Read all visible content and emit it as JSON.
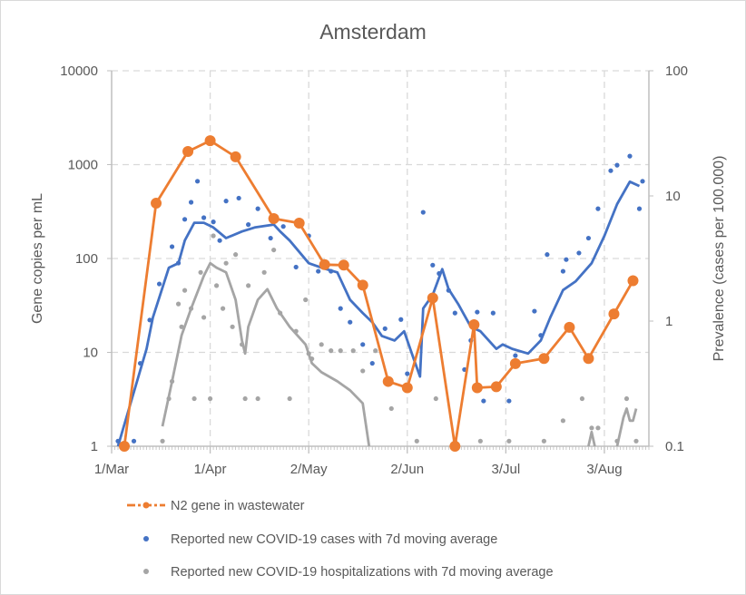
{
  "chart_data": {
    "type": "line",
    "title": "Amsterdam",
    "ylabel": "Gene copies per mL",
    "y2label": "Prevalence (cases per 100.000)",
    "yscale": "log",
    "ylim": [
      1,
      10000
    ],
    "yticks": [
      "1",
      "10",
      "100",
      "1000",
      "10000"
    ],
    "y2scale": "log",
    "y2lim": [
      0.1,
      100
    ],
    "y2ticks": [
      "0.1",
      "1",
      "10",
      "100"
    ],
    "xticks": [
      "1/Mar",
      "1/Apr",
      "2/May",
      "2/Jun",
      "3/Jul",
      "3/Aug"
    ],
    "grid": true,
    "legend_position": "bottom",
    "colors": {
      "wastewater": "#ED7D31",
      "cases": "#4472C4",
      "hospitalizations": "#A5A5A5",
      "grid": "#d9d9d9",
      "axis": "#bfbfbf"
    },
    "series": [
      {
        "name": "N2 gene in wastewater",
        "axis": "left",
        "style": "line-marker",
        "points": [
          [
            "5/Mar",
            1
          ],
          [
            "15/Mar",
            388
          ],
          [
            "25/Mar",
            1380
          ],
          [
            "1/Apr",
            1800
          ],
          [
            "9/Apr",
            1210
          ],
          [
            "21/Apr",
            266
          ],
          [
            "29/Apr",
            238
          ],
          [
            "7/May",
            86
          ],
          [
            "13/May",
            85
          ],
          [
            "19/May",
            52
          ],
          [
            "27/May",
            4.9
          ],
          [
            "2/Jun",
            4.2
          ],
          [
            "10/Jun",
            38
          ],
          [
            "17/Jun",
            1
          ],
          [
            "23/Jun",
            19.7
          ],
          [
            "24/Jun",
            4.2
          ],
          [
            "30/Jun",
            4.3
          ],
          [
            "6/Jul",
            7.6
          ],
          [
            "15/Jul",
            8.6
          ],
          [
            "23/Jul",
            18.5
          ],
          [
            "29/Jul",
            8.6
          ],
          [
            "6/Aug",
            25.7
          ],
          [
            "12/Aug",
            58
          ]
        ]
      },
      {
        "name": "Reported new COVID-19 cases with 7d moving average",
        "axis": "right",
        "style": "dots-and-average",
        "points": [
          [
            "3/Mar",
            0.11
          ],
          [
            "8/Mar",
            0.11
          ],
          [
            "10/Mar",
            0.46
          ],
          [
            "13/Mar",
            1.02
          ],
          [
            "16/Mar",
            1.98
          ],
          [
            "20/Mar",
            3.93
          ],
          [
            "22/Mar",
            2.91
          ],
          [
            "24/Mar",
            6.5
          ],
          [
            "26/Mar",
            8.9
          ],
          [
            "28/Mar",
            13.1
          ],
          [
            "30/Mar",
            6.7
          ],
          [
            "2/Apr",
            6.2
          ],
          [
            "4/Apr",
            4.4
          ],
          [
            "6/Apr",
            9.1
          ],
          [
            "10/Apr",
            9.6
          ],
          [
            "13/Apr",
            5.9
          ],
          [
            "16/Apr",
            7.9
          ],
          [
            "20/Apr",
            4.6
          ],
          [
            "24/Apr",
            5.7
          ],
          [
            "28/Apr",
            2.7
          ],
          [
            "2/May",
            4.8
          ],
          [
            "5/May",
            2.5
          ],
          [
            "9/May",
            2.5
          ],
          [
            "12/May",
            1.26
          ],
          [
            "15/May",
            0.98
          ],
          [
            "19/May",
            0.65
          ],
          [
            "22/May",
            0.46
          ],
          [
            "26/May",
            0.87
          ],
          [
            "31/May",
            1.03
          ],
          [
            "2/Jun",
            0.38
          ],
          [
            "7/Jun",
            7.4
          ],
          [
            "10/Jun",
            2.8
          ],
          [
            "12/Jun",
            2.4
          ],
          [
            "15/Jun",
            1.76
          ],
          [
            "17/Jun",
            1.16
          ],
          [
            "20/Jun",
            0.41
          ],
          [
            "22/Jun",
            0.7
          ],
          [
            "24/Jun",
            1.18
          ],
          [
            "26/Jun",
            0.23
          ],
          [
            "29/Jun",
            1.16
          ],
          [
            "4/Jul",
            0.23
          ],
          [
            "6/Jul",
            0.53
          ],
          [
            "12/Jul",
            1.2
          ],
          [
            "14/Jul",
            0.77
          ],
          [
            "16/Jul",
            3.4
          ],
          [
            "21/Jul",
            2.5
          ],
          [
            "22/Jul",
            3.1
          ],
          [
            "26/Jul",
            3.5
          ],
          [
            "29/Jul",
            4.6
          ],
          [
            "1/Aug",
            7.9
          ],
          [
            "5/Aug",
            15.9
          ],
          [
            "7/Aug",
            17.6
          ],
          [
            "11/Aug",
            20.8
          ],
          [
            "14/Aug",
            7.9
          ],
          [
            "15/Aug",
            13.1
          ]
        ],
        "moving_average": [
          [
            "3/Mar",
            0.1
          ],
          [
            "9/Mar",
            0.33
          ],
          [
            "12/Mar",
            0.6
          ],
          [
            "14/Mar",
            1.07
          ],
          [
            "19/Mar",
            2.67
          ],
          [
            "22/Mar",
            2.9
          ],
          [
            "24/Mar",
            4.4
          ],
          [
            "27/Mar",
            6.1
          ],
          [
            "30/Mar",
            6.1
          ],
          [
            "2/Apr",
            5.6
          ],
          [
            "6/Apr",
            4.6
          ],
          [
            "11/Apr",
            5.2
          ],
          [
            "15/Apr",
            5.6
          ],
          [
            "21/Apr",
            5.9
          ],
          [
            "23/Apr",
            5.2
          ],
          [
            "26/Apr",
            4.4
          ],
          [
            "2/May",
            2.9
          ],
          [
            "6/May",
            2.67
          ],
          [
            "11/May",
            2.45
          ],
          [
            "15/May",
            1.48
          ],
          [
            "19/May",
            1.16
          ],
          [
            "22/May",
            0.98
          ],
          [
            "25/May",
            0.76
          ],
          [
            "29/May",
            0.7
          ],
          [
            "1/Jun",
            0.83
          ],
          [
            "4/Jun",
            0.5
          ],
          [
            "6/Jun",
            0.36
          ],
          [
            "7/Jun",
            1.26
          ],
          [
            "10/Jun",
            1.62
          ],
          [
            "13/Jun",
            2.6
          ],
          [
            "15/Jun",
            1.8
          ],
          [
            "18/Jun",
            1.37
          ],
          [
            "22/Jun",
            0.9
          ],
          [
            "25/Jun",
            0.83
          ],
          [
            "30/Jun",
            0.6
          ],
          [
            "2/Jul",
            0.65
          ],
          [
            "5/Jul",
            0.6
          ],
          [
            "10/Jul",
            0.55
          ],
          [
            "14/Jul",
            0.7
          ],
          [
            "17/Jul",
            1.07
          ],
          [
            "21/Jul",
            1.77
          ],
          [
            "25/Jul",
            2.08
          ],
          [
            "30/Jul",
            2.9
          ],
          [
            "3/Aug",
            4.8
          ],
          [
            "7/Aug",
            8.6
          ],
          [
            "11/Aug",
            13
          ],
          [
            "14/Aug",
            12
          ]
        ]
      },
      {
        "name": "Reported new COVID-19 hospitalizations with 7d moving average",
        "axis": "right",
        "style": "dots-and-average",
        "points": [
          [
            "17/Mar",
            0.11
          ],
          [
            "19/Mar",
            0.24
          ],
          [
            "20/Mar",
            0.33
          ],
          [
            "22/Mar",
            1.37
          ],
          [
            "23/Mar",
            0.9
          ],
          [
            "24/Mar",
            1.76
          ],
          [
            "26/Mar",
            1.26
          ],
          [
            "27/Mar",
            0.24
          ],
          [
            "29/Mar",
            2.45
          ],
          [
            "30/Mar",
            1.07
          ],
          [
            "1/Apr",
            0.24
          ],
          [
            "2/Apr",
            4.8
          ],
          [
            "3/Apr",
            1.92
          ],
          [
            "5/Apr",
            1.26
          ],
          [
            "6/Apr",
            2.9
          ],
          [
            "8/Apr",
            0.9
          ],
          [
            "9/Apr",
            3.4
          ],
          [
            "11/Apr",
            0.65
          ],
          [
            "12/Apr",
            0.24
          ],
          [
            "13/Apr",
            1.92
          ],
          [
            "16/Apr",
            0.24
          ],
          [
            "18/Apr",
            2.45
          ],
          [
            "21/Apr",
            3.7
          ],
          [
            "23/Apr",
            1.16
          ],
          [
            "26/Apr",
            0.24
          ],
          [
            "28/Apr",
            0.83
          ],
          [
            "1/May",
            1.48
          ],
          [
            "2/May",
            0.55
          ],
          [
            "3/May",
            0.5
          ],
          [
            "6/May",
            0.65
          ],
          [
            "9/May",
            0.58
          ],
          [
            "12/May",
            0.58
          ],
          [
            "16/May",
            0.58
          ],
          [
            "19/May",
            0.4
          ],
          [
            "23/May",
            0.58
          ],
          [
            "28/May",
            0.2
          ],
          [
            "5/Jun",
            0.11
          ],
          [
            "11/Jun",
            0.24
          ],
          [
            "17/Jun",
            0.11
          ],
          [
            "25/Jun",
            0.11
          ],
          [
            "4/Jul",
            0.11
          ],
          [
            "15/Jul",
            0.11
          ],
          [
            "21/Jul",
            0.16
          ],
          [
            "27/Jul",
            0.24
          ],
          [
            "30/Jul",
            0.14
          ],
          [
            "1/Aug",
            0.14
          ],
          [
            "7/Aug",
            0.11
          ],
          [
            "10/Aug",
            0.24
          ],
          [
            "13/Aug",
            0.11
          ]
        ],
        "moving_average": [
          [
            "17/Mar",
            0.144
          ],
          [
            "20/Mar",
            0.33
          ],
          [
            "23/Mar",
            0.77
          ],
          [
            "26/Mar",
            1.26
          ],
          [
            "30/Mar",
            2.3
          ],
          [
            "1/Apr",
            2.9
          ],
          [
            "3/Apr",
            2.67
          ],
          [
            "6/Apr",
            2.45
          ],
          [
            "9/Apr",
            1.48
          ],
          [
            "11/Apr",
            0.7
          ],
          [
            "12/Apr",
            0.55
          ],
          [
            "13/Apr",
            0.9
          ],
          [
            "16/Apr",
            1.48
          ],
          [
            "19/Apr",
            1.8
          ],
          [
            "22/Apr",
            1.26
          ],
          [
            "26/Apr",
            0.9
          ],
          [
            "1/May",
            0.65
          ],
          [
            "3/May",
            0.46
          ],
          [
            "6/May",
            0.39
          ],
          [
            "11/May",
            0.33
          ],
          [
            "15/May",
            0.28
          ],
          [
            "19/May",
            0.22
          ],
          [
            "21/May",
            0.1
          ],
          null,
          [
            "29/Jul",
            0.1
          ],
          [
            "30/Jul",
            0.13
          ],
          [
            "31/Jul",
            0.1
          ],
          null,
          [
            "7/Aug",
            0.1
          ],
          [
            "9/Aug",
            0.17
          ],
          [
            "10/Aug",
            0.2
          ],
          [
            "11/Aug",
            0.16
          ],
          [
            "12/Aug",
            0.16
          ],
          [
            "13/Aug",
            0.2
          ]
        ]
      }
    ]
  }
}
